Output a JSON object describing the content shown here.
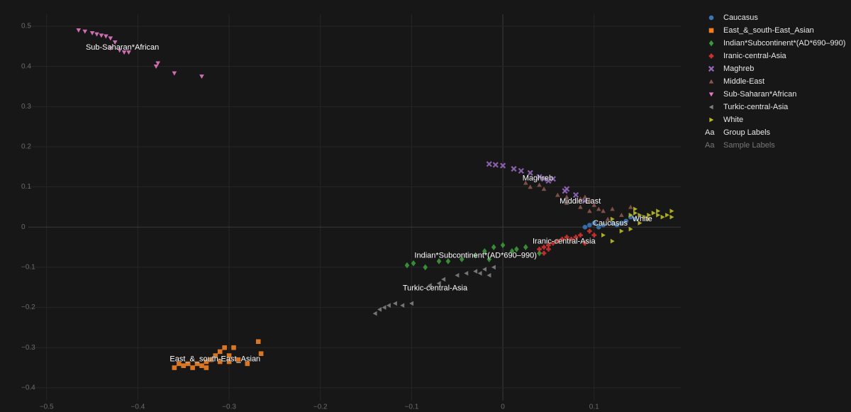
{
  "chart_data": {
    "type": "scatter",
    "xlim": [
      -0.52,
      0.195
    ],
    "ylim": [
      -0.432,
      0.53
    ],
    "xticks": [
      {
        "value": -0.5,
        "label": "−0.5"
      },
      {
        "value": -0.4,
        "label": "−0.4"
      },
      {
        "value": -0.3,
        "label": "−0.3"
      },
      {
        "value": -0.2,
        "label": "−0.2"
      },
      {
        "value": -0.1,
        "label": "−0.1"
      },
      0,
      0.1
    ],
    "yticks": [
      {
        "value": -0.4,
        "label": "−0.4"
      },
      {
        "value": -0.3,
        "label": "−0.3"
      },
      {
        "value": -0.2,
        "label": "−0.2"
      },
      {
        "value": -0.1,
        "label": "−0.1"
      },
      0,
      0.1,
      0.2,
      0.3,
      0.4,
      0.5
    ],
    "grid": true,
    "series": [
      {
        "name": "Caucasus",
        "color": "#3a76b3",
        "symbol": "circle",
        "x": [
          0.09,
          0.095,
          0.1,
          0.105,
          0.11,
          0.12,
          0.125,
          0.135,
          0.14,
          0.145,
          0.13
        ],
        "values": [
          0,
          0.005,
          0.01,
          0,
          0.005,
          0.01,
          0.005,
          0.015,
          0.025,
          0.02,
          0.01
        ]
      },
      {
        "name": "East_&_south-East_Asian",
        "color": "#f07f22",
        "symbol": "square",
        "x": [
          -0.36,
          -0.35,
          -0.34,
          -0.335,
          -0.33,
          -0.325,
          -0.32,
          -0.315,
          -0.31,
          -0.305,
          -0.3,
          -0.295,
          -0.31,
          -0.345,
          -0.29,
          -0.28,
          -0.268,
          -0.265,
          -0.355,
          -0.325,
          -0.3
        ],
        "values": [
          -0.35,
          -0.345,
          -0.35,
          -0.34,
          -0.345,
          -0.335,
          -0.33,
          -0.32,
          -0.31,
          -0.3,
          -0.32,
          -0.3,
          -0.335,
          -0.34,
          -0.33,
          -0.34,
          -0.285,
          -0.315,
          -0.34,
          -0.35,
          -0.335
        ]
      },
      {
        "name": "Indian*Subcontinent*(AD*690–990)",
        "color": "#3a9a3a",
        "symbol": "diamond",
        "x": [
          -0.105,
          -0.098,
          -0.085,
          -0.07,
          -0.06,
          -0.045,
          -0.03,
          -0.02,
          -0.01,
          0,
          0.01,
          0.015,
          0.025,
          -0.015,
          0.04
        ],
        "values": [
          -0.095,
          -0.09,
          -0.1,
          -0.085,
          -0.085,
          -0.08,
          -0.07,
          -0.06,
          -0.05,
          -0.045,
          -0.06,
          -0.055,
          -0.05,
          -0.08,
          -0.065
        ]
      },
      {
        "name": "Iranic-central-Asia",
        "color": "#d3322f",
        "symbol": "cross",
        "x": [
          0.04,
          0.045,
          0.05,
          0.055,
          0.06,
          0.065,
          0.07,
          0.075,
          0.08,
          0.085,
          0.09,
          0.1,
          0.05,
          0.045,
          0.095
        ],
        "values": [
          -0.055,
          -0.05,
          -0.045,
          -0.04,
          -0.035,
          -0.03,
          -0.025,
          -0.03,
          -0.025,
          -0.02,
          -0.04,
          -0.02,
          -0.055,
          -0.065,
          -0.01
        ]
      },
      {
        "name": "Maghreb",
        "color": "#9467bd",
        "symbol": "x",
        "x": [
          -0.015,
          -0.008,
          0,
          0.012,
          0.02,
          0.03,
          0.04,
          0.045,
          0.05,
          0.055,
          0.07,
          0.068,
          0.08,
          0.09
        ],
        "values": [
          0.157,
          0.155,
          0.153,
          0.145,
          0.14,
          0.135,
          0.125,
          0.12,
          0.115,
          0.12,
          0.095,
          0.09,
          0.08,
          0.065
        ]
      },
      {
        "name": "Middle-East",
        "color": "#8c564b",
        "symbol": "triangle-up",
        "x": [
          0.025,
          0.03,
          0.04,
          0.045,
          0.06,
          0.07,
          0.085,
          0.09,
          0.095,
          0.1,
          0.105,
          0.11,
          0.12,
          0.13,
          0.095,
          0.085,
          0.115,
          0.14,
          0.07
        ],
        "values": [
          0.11,
          0.1,
          0.105,
          0.095,
          0.08,
          0.075,
          0.07,
          0.075,
          0.065,
          0.055,
          0.045,
          0.04,
          0.045,
          0.03,
          0.04,
          0.05,
          0.02,
          0.05,
          0.06
        ]
      },
      {
        "name": "Sub-Saharan*African",
        "color": "#e377c2",
        "symbol": "triangle-down",
        "x": [
          -0.465,
          -0.458,
          -0.45,
          -0.445,
          -0.44,
          -0.435,
          -0.43,
          -0.425,
          -0.43,
          -0.42,
          -0.41,
          -0.415,
          -0.378,
          -0.38,
          -0.36,
          -0.33
        ],
        "values": [
          0.49,
          0.487,
          0.483,
          0.48,
          0.477,
          0.475,
          0.47,
          0.46,
          0.445,
          0.44,
          0.435,
          0.435,
          0.408,
          0.4,
          0.383,
          0.375
        ]
      },
      {
        "name": "Turkic-central-Asia",
        "color": "#7f7f7f",
        "symbol": "triangle-left",
        "x": [
          -0.14,
          -0.135,
          -0.13,
          -0.125,
          -0.118,
          -0.11,
          -0.1,
          -0.08,
          -0.07,
          -0.065,
          -0.05,
          -0.04,
          -0.03,
          -0.025,
          -0.015,
          -0.02,
          -0.01
        ],
        "values": [
          -0.215,
          -0.205,
          -0.2,
          -0.195,
          -0.19,
          -0.195,
          -0.19,
          -0.145,
          -0.14,
          -0.13,
          -0.12,
          -0.115,
          -0.11,
          -0.115,
          -0.12,
          -0.105,
          -0.1
        ]
      },
      {
        "name": "White",
        "color": "#bcbd22",
        "symbol": "triangle-right",
        "x": [
          0.12,
          0.14,
          0.145,
          0.15,
          0.155,
          0.16,
          0.165,
          0.17,
          0.175,
          0.18,
          0.16,
          0.15,
          0.13,
          0.11,
          0.145,
          0.17,
          0.185,
          0.14,
          0.12,
          0.185
        ],
        "values": [
          0.02,
          0.03,
          0.035,
          0.03,
          0.025,
          0.03,
          0.035,
          0.03,
          0.025,
          0.03,
          0.02,
          0.01,
          -0.01,
          -0.02,
          0.045,
          0.04,
          0.04,
          -0.005,
          -0.035,
          0.025
        ]
      }
    ],
    "legend_extra": [
      {
        "icon": "Aa",
        "label": "Group Labels"
      },
      {
        "icon": "Aa",
        "label": "Sample Labels"
      }
    ]
  }
}
